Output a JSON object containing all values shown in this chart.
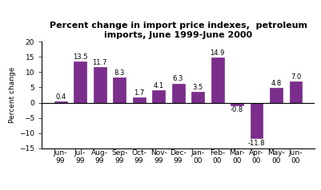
{
  "categories": [
    "Jun-\n99",
    "Jul-\n99",
    "Aug-\n99",
    "Sep-\n99",
    "Oct-\n99",
    "Nov-\n99",
    "Dec-\n99",
    "Jan-\n00",
    "Feb-\n00",
    "Mar-\n00",
    "Apr-\n00",
    "May-\n00",
    "Jun-\n00"
  ],
  "values": [
    0.4,
    13.5,
    11.7,
    8.3,
    1.7,
    4.1,
    6.3,
    3.5,
    14.9,
    -0.8,
    -11.8,
    4.8,
    7.0
  ],
  "bar_color": "#7B2D8B",
  "title_line1": "Percent change in import price indexes,  petroleum",
  "title_line2": "imports, June 1999-June 2000",
  "ylabel": "Percent change",
  "ylim": [
    -15,
    20
  ],
  "yticks": [
    -15,
    -10,
    -5,
    0,
    5,
    10,
    15,
    20
  ],
  "label_fontsize": 6.5,
  "title_fontsize": 8.0,
  "bar_label_fontsize": 6.0,
  "ylabel_fontsize": 6.5,
  "background_color": "#ffffff"
}
